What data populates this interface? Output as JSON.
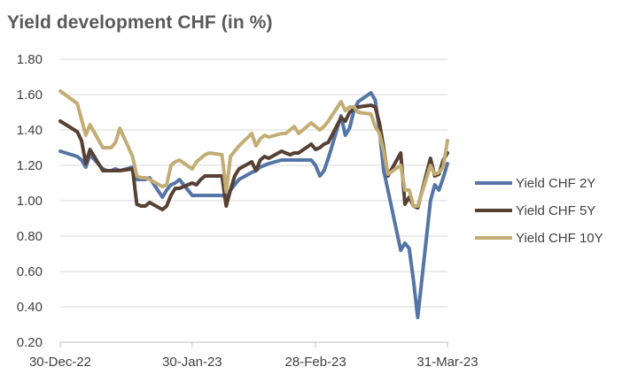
{
  "chart_data": {
    "type": "line",
    "title": "Yield development CHF (in %)",
    "xlabel": "",
    "ylabel": "",
    "x_range": [
      "2022-12-30",
      "2023-03-31"
    ],
    "ylim": [
      0.2,
      1.8
    ],
    "y_ticks": [
      "0.20",
      "0.40",
      "0.60",
      "0.80",
      "1.00",
      "1.20",
      "1.40",
      "1.60",
      "1.80"
    ],
    "x_ticks": [
      {
        "date": "2022-12-30",
        "label": "30-Dec-22"
      },
      {
        "date": "2023-01-30",
        "label": "30-Jan-23"
      },
      {
        "date": "2023-02-28",
        "label": "28-Feb-23"
      },
      {
        "date": "2023-03-31",
        "label": "31-Mar-23"
      }
    ],
    "grid": "horizontal",
    "legend_position": "right",
    "series": [
      {
        "name": "Yield CHF 2Y",
        "color": "#5575a6",
        "points": [
          [
            "2022-12-30",
            1.28
          ],
          [
            "2023-01-03",
            1.25
          ],
          [
            "2023-01-04",
            1.23
          ],
          [
            "2023-01-05",
            1.19
          ],
          [
            "2023-01-06",
            1.26
          ],
          [
            "2023-01-09",
            1.18
          ],
          [
            "2023-01-10",
            1.17
          ],
          [
            "2023-01-11",
            1.17
          ],
          [
            "2023-01-12",
            1.18
          ],
          [
            "2023-01-13",
            1.17
          ],
          [
            "2023-01-16",
            1.19
          ],
          [
            "2023-01-17",
            1.12
          ],
          [
            "2023-01-18",
            1.12
          ],
          [
            "2023-01-19",
            1.12
          ],
          [
            "2023-01-20",
            1.13
          ],
          [
            "2023-01-23",
            1.02
          ],
          [
            "2023-01-24",
            1.06
          ],
          [
            "2023-01-25",
            1.09
          ],
          [
            "2023-01-26",
            1.1
          ],
          [
            "2023-01-27",
            1.12
          ],
          [
            "2023-01-30",
            1.03
          ],
          [
            "2023-01-31",
            1.03
          ],
          [
            "2023-02-01",
            1.03
          ],
          [
            "2023-02-02",
            1.03
          ],
          [
            "2023-02-03",
            1.03
          ],
          [
            "2023-02-06",
            1.03
          ],
          [
            "2023-02-07",
            1.02
          ],
          [
            "2023-02-08",
            1.06
          ],
          [
            "2023-02-09",
            1.09
          ],
          [
            "2023-02-10",
            1.12
          ],
          [
            "2023-02-13",
            1.16
          ],
          [
            "2023-02-14",
            1.17
          ],
          [
            "2023-02-15",
            1.19
          ],
          [
            "2023-02-16",
            1.2
          ],
          [
            "2023-02-17",
            1.21
          ],
          [
            "2023-02-20",
            1.23
          ],
          [
            "2023-02-21",
            1.23
          ],
          [
            "2023-02-22",
            1.23
          ],
          [
            "2023-02-23",
            1.23
          ],
          [
            "2023-02-24",
            1.23
          ],
          [
            "2023-02-27",
            1.23
          ],
          [
            "2023-02-28",
            1.2
          ],
          [
            "2023-03-01",
            1.14
          ],
          [
            "2023-03-02",
            1.17
          ],
          [
            "2023-03-03",
            1.24
          ],
          [
            "2023-03-06",
            1.48
          ],
          [
            "2023-03-07",
            1.37
          ],
          [
            "2023-03-08",
            1.41
          ],
          [
            "2023-03-09",
            1.51
          ],
          [
            "2023-03-10",
            1.56
          ],
          [
            "2023-03-13",
            1.61
          ],
          [
            "2023-03-14",
            1.57
          ],
          [
            "2023-03-15",
            1.4
          ],
          [
            "2023-03-16",
            1.17
          ],
          [
            "2023-03-17",
            1.06
          ],
          [
            "2023-03-20",
            0.72
          ],
          [
            "2023-03-21",
            0.76
          ],
          [
            "2023-03-22",
            0.73
          ],
          [
            "2023-03-23",
            0.55
          ],
          [
            "2023-03-24",
            0.34
          ],
          [
            "2023-03-27",
            1.0
          ],
          [
            "2023-03-28",
            1.09
          ],
          [
            "2023-03-29",
            1.06
          ],
          [
            "2023-03-30",
            1.13
          ],
          [
            "2023-03-31",
            1.21
          ]
        ]
      },
      {
        "name": "Yield CHF 5Y",
        "color": "#574034",
        "points": [
          [
            "2022-12-30",
            1.45
          ],
          [
            "2023-01-03",
            1.39
          ],
          [
            "2023-01-04",
            1.34
          ],
          [
            "2023-01-05",
            1.21
          ],
          [
            "2023-01-06",
            1.29
          ],
          [
            "2023-01-09",
            1.17
          ],
          [
            "2023-01-10",
            1.17
          ],
          [
            "2023-01-11",
            1.17
          ],
          [
            "2023-01-12",
            1.17
          ],
          [
            "2023-01-13",
            1.17
          ],
          [
            "2023-01-16",
            1.18
          ],
          [
            "2023-01-17",
            0.98
          ],
          [
            "2023-01-18",
            0.97
          ],
          [
            "2023-01-19",
            0.97
          ],
          [
            "2023-01-20",
            0.99
          ],
          [
            "2023-01-23",
            0.95
          ],
          [
            "2023-01-24",
            0.97
          ],
          [
            "2023-01-25",
            1.03
          ],
          [
            "2023-01-26",
            1.07
          ],
          [
            "2023-01-27",
            1.07
          ],
          [
            "2023-01-30",
            1.1
          ],
          [
            "2023-01-31",
            1.09
          ],
          [
            "2023-02-01",
            1.12
          ],
          [
            "2023-02-02",
            1.14
          ],
          [
            "2023-02-03",
            1.14
          ],
          [
            "2023-02-06",
            1.14
          ],
          [
            "2023-02-07",
            0.97
          ],
          [
            "2023-02-08",
            1.06
          ],
          [
            "2023-02-09",
            1.14
          ],
          [
            "2023-02-10",
            1.18
          ],
          [
            "2023-02-13",
            1.22
          ],
          [
            "2023-02-14",
            1.17
          ],
          [
            "2023-02-15",
            1.23
          ],
          [
            "2023-02-16",
            1.25
          ],
          [
            "2023-02-17",
            1.24
          ],
          [
            "2023-02-20",
            1.28
          ],
          [
            "2023-02-21",
            1.27
          ],
          [
            "2023-02-22",
            1.26
          ],
          [
            "2023-02-23",
            1.27
          ],
          [
            "2023-02-24",
            1.27
          ],
          [
            "2023-02-27",
            1.32
          ],
          [
            "2023-02-28",
            1.29
          ],
          [
            "2023-03-01",
            1.3
          ],
          [
            "2023-03-02",
            1.32
          ],
          [
            "2023-03-03",
            1.33
          ],
          [
            "2023-03-06",
            1.47
          ],
          [
            "2023-03-07",
            1.45
          ],
          [
            "2023-03-08",
            1.5
          ],
          [
            "2023-03-09",
            1.52
          ],
          [
            "2023-03-10",
            1.53
          ],
          [
            "2023-03-13",
            1.54
          ],
          [
            "2023-03-14",
            1.53
          ],
          [
            "2023-03-15",
            1.44
          ],
          [
            "2023-03-16",
            1.3
          ],
          [
            "2023-03-17",
            1.14
          ],
          [
            "2023-03-20",
            1.27
          ],
          [
            "2023-03-21",
            0.98
          ],
          [
            "2023-03-22",
            1.02
          ],
          [
            "2023-03-23",
            0.97
          ],
          [
            "2023-03-24",
            0.96
          ],
          [
            "2023-03-27",
            1.24
          ],
          [
            "2023-03-28",
            1.14
          ],
          [
            "2023-03-29",
            1.15
          ],
          [
            "2023-03-30",
            1.23
          ],
          [
            "2023-03-31",
            1.27
          ]
        ]
      },
      {
        "name": "Yield CHF 10Y",
        "color": "#c3ad74",
        "points": [
          [
            "2022-12-30",
            1.62
          ],
          [
            "2023-01-03",
            1.55
          ],
          [
            "2023-01-04",
            1.46
          ],
          [
            "2023-01-05",
            1.37
          ],
          [
            "2023-01-06",
            1.43
          ],
          [
            "2023-01-09",
            1.3
          ],
          [
            "2023-01-10",
            1.3
          ],
          [
            "2023-01-11",
            1.3
          ],
          [
            "2023-01-12",
            1.33
          ],
          [
            "2023-01-13",
            1.41
          ],
          [
            "2023-01-16",
            1.25
          ],
          [
            "2023-01-17",
            1.14
          ],
          [
            "2023-01-18",
            1.13
          ],
          [
            "2023-01-19",
            1.13
          ],
          [
            "2023-01-20",
            1.12
          ],
          [
            "2023-01-23",
            1.08
          ],
          [
            "2023-01-24",
            1.09
          ],
          [
            "2023-01-25",
            1.2
          ],
          [
            "2023-01-26",
            1.22
          ],
          [
            "2023-01-27",
            1.23
          ],
          [
            "2023-01-30",
            1.18
          ],
          [
            "2023-01-31",
            1.22
          ],
          [
            "2023-02-01",
            1.24
          ],
          [
            "2023-02-02",
            1.26
          ],
          [
            "2023-02-03",
            1.27
          ],
          [
            "2023-02-06",
            1.26
          ],
          [
            "2023-02-07",
            1.05
          ],
          [
            "2023-02-08",
            1.25
          ],
          [
            "2023-02-09",
            1.28
          ],
          [
            "2023-02-10",
            1.31
          ],
          [
            "2023-02-13",
            1.38
          ],
          [
            "2023-02-14",
            1.31
          ],
          [
            "2023-02-15",
            1.35
          ],
          [
            "2023-02-16",
            1.37
          ],
          [
            "2023-02-17",
            1.36
          ],
          [
            "2023-02-20",
            1.38
          ],
          [
            "2023-02-21",
            1.38
          ],
          [
            "2023-02-22",
            1.4
          ],
          [
            "2023-02-23",
            1.42
          ],
          [
            "2023-02-24",
            1.38
          ],
          [
            "2023-02-27",
            1.44
          ],
          [
            "2023-02-28",
            1.42
          ],
          [
            "2023-03-01",
            1.4
          ],
          [
            "2023-03-02",
            1.42
          ],
          [
            "2023-03-03",
            1.45
          ],
          [
            "2023-03-06",
            1.56
          ],
          [
            "2023-03-07",
            1.51
          ],
          [
            "2023-03-08",
            1.53
          ],
          [
            "2023-03-09",
            1.53
          ],
          [
            "2023-03-10",
            1.5
          ],
          [
            "2023-03-13",
            1.49
          ],
          [
            "2023-03-14",
            1.42
          ],
          [
            "2023-03-15",
            1.38
          ],
          [
            "2023-03-16",
            1.28
          ],
          [
            "2023-03-17",
            1.15
          ],
          [
            "2023-03-20",
            1.2
          ],
          [
            "2023-03-21",
            1.06
          ],
          [
            "2023-03-22",
            1.06
          ],
          [
            "2023-03-23",
            0.97
          ],
          [
            "2023-03-24",
            0.97
          ],
          [
            "2023-03-27",
            1.2
          ],
          [
            "2023-03-28",
            1.15
          ],
          [
            "2023-03-29",
            1.16
          ],
          [
            "2023-03-30",
            1.19
          ],
          [
            "2023-03-31",
            1.34
          ]
        ]
      }
    ]
  }
}
